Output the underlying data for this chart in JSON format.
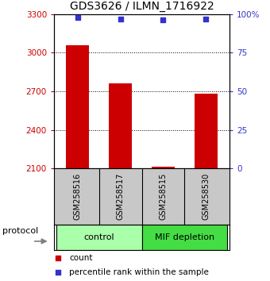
{
  "title": "GDS3626 / ILMN_1716922",
  "samples": [
    "GSM258516",
    "GSM258517",
    "GSM258515",
    "GSM258530"
  ],
  "bar_values": [
    3060,
    2760,
    2115,
    2680
  ],
  "percentile_values": [
    98,
    97,
    96,
    97
  ],
  "ylim_left": [
    2100,
    3300
  ],
  "ylim_right": [
    0,
    100
  ],
  "yticks_left": [
    2100,
    2400,
    2700,
    3000,
    3300
  ],
  "yticks_right": [
    0,
    25,
    50,
    75,
    100
  ],
  "ytick_labels_right": [
    "0",
    "25",
    "50",
    "75",
    "100%"
  ],
  "bar_color": "#cc0000",
  "percentile_color": "#3333cc",
  "bar_bottom": 2100,
  "groups": [
    {
      "label": "control",
      "color": "#aaffaa",
      "start": 0,
      "end": 1
    },
    {
      "label": "MIF depletion",
      "color": "#44dd44",
      "start": 2,
      "end": 3
    }
  ],
  "legend_items": [
    {
      "label": "count",
      "color": "#cc0000"
    },
    {
      "label": "percentile rank within the sample",
      "color": "#3333cc"
    }
  ],
  "protocol_label": "protocol",
  "title_fontsize": 10,
  "axis_color_left": "#cc0000",
  "axis_color_right": "#3333cc",
  "grid_lines": [
    3000,
    2700,
    2400
  ],
  "bar_width": 0.55,
  "xlim": [
    -0.55,
    3.55
  ],
  "boundaries": [
    -0.5,
    1.5,
    3.5
  ]
}
